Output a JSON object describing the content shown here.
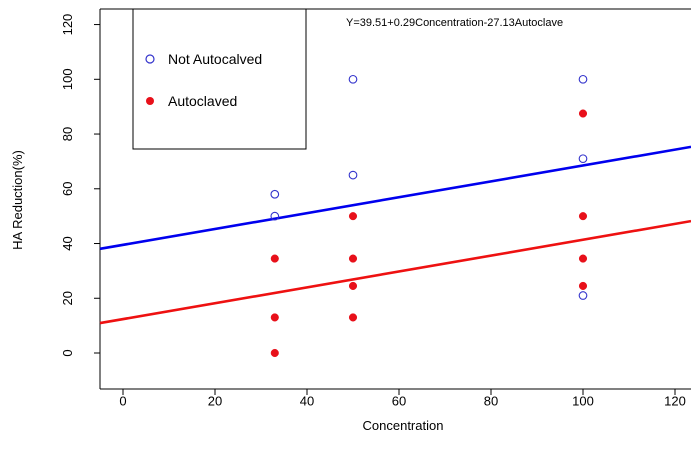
{
  "chart_data": {
    "type": "scatter",
    "title": "",
    "annotation": "Y=39.51+0.29Concentration-27.13Autoclave",
    "xlabel": "Concentration",
    "ylabel": "HA Reduction(%)",
    "xlim": [
      -4,
      123
    ],
    "ylim": [
      -13,
      122
    ],
    "xticks": [
      0,
      20,
      40,
      60,
      80,
      100,
      120
    ],
    "yticks": [
      0,
      20,
      40,
      60,
      80,
      100,
      120
    ],
    "grid": false,
    "legend_position": "top-left",
    "series": [
      {
        "name": "Not Autocalved",
        "marker": "open-circle",
        "color": "#3333cc",
        "points": [
          {
            "x": 33,
            "y": 58
          },
          {
            "x": 33,
            "y": 50
          },
          {
            "x": 50,
            "y": 100
          },
          {
            "x": 50,
            "y": 65
          },
          {
            "x": 100,
            "y": 100
          },
          {
            "x": 100,
            "y": 71
          },
          {
            "x": 100,
            "y": 21
          }
        ],
        "fit_line": {
          "intercept": 39.51,
          "slope": 0.29,
          "color": "#0000ee"
        }
      },
      {
        "name": "Autoclaved",
        "marker": "filled-circle",
        "color": "#e8101a",
        "points": [
          {
            "x": 33,
            "y": 34.5
          },
          {
            "x": 33,
            "y": 13
          },
          {
            "x": 33,
            "y": 0
          },
          {
            "x": 50,
            "y": 50
          },
          {
            "x": 50,
            "y": 34.5
          },
          {
            "x": 50,
            "y": 24.5
          },
          {
            "x": 50,
            "y": 13
          },
          {
            "x": 100,
            "y": 87.5
          },
          {
            "x": 100,
            "y": 50
          },
          {
            "x": 100,
            "y": 34.5
          },
          {
            "x": 100,
            "y": 24.5
          }
        ],
        "fit_line": {
          "intercept": 12.38,
          "slope": 0.29,
          "color": "#ee1111"
        }
      }
    ]
  }
}
